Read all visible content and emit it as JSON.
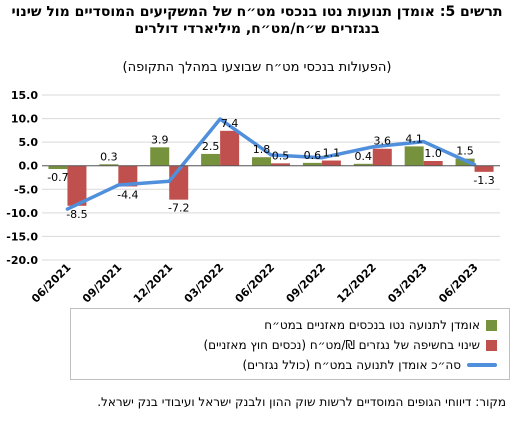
{
  "title": "תרשים 5: אומדן תנועות נטו בנכסי מט״ח של המשקיעים המוסדיים מול שינוי בנגזרים ש״ח/מט״ח, מיליארדי דולרים",
  "subtitle": "(הפעולות בנכסי מט״ח שבוצעו במהלך התקופה)",
  "source": "מקור: דיווחי הגופים המוסדיים לרשות שוק ההון ולבנק ישראל ועיבודי בנק ישראל.",
  "colors": {
    "green": "#76923c",
    "red": "#c0504d",
    "blue": "#4f8fdc",
    "grid": "#d9d9d9"
  },
  "chart_data": {
    "type": "bar",
    "x_tick_labels": [
      "06/2021",
      "09/2021",
      "12/2021",
      "03/2022",
      "06/2022",
      "09/2022",
      "12/2022",
      "03/2023",
      "06/2023"
    ],
    "ylim": [
      -20,
      15
    ],
    "y_ticks": [
      "15.0",
      "10.0",
      "5.0",
      "0.0",
      "-5.0",
      "-10.0",
      "-15.0",
      "-20.0"
    ],
    "y_tick_values": [
      15,
      10,
      5,
      0,
      -5,
      -10,
      -15,
      -20
    ],
    "series": [
      {
        "name": "אומדן לתנועה נטו בנכסים מאזניים במט״ח",
        "type": "bar",
        "color": "#76923c",
        "values": [
          -0.7,
          0.3,
          3.9,
          2.5,
          1.8,
          0.6,
          0.4,
          4.1,
          1.5
        ],
        "labels": [
          "-0.7",
          "0.3",
          "3.9",
          "2.5",
          "1.8",
          "0.6",
          "0.4",
          "4.1",
          "1.5"
        ]
      },
      {
        "name": "שינוי בחשיפה של נגזרים ₪/מט״ח (נכסים חוץ מאזניים)",
        "type": "bar",
        "color": "#c0504d",
        "values": [
          -8.5,
          -4.4,
          -7.2,
          7.4,
          0.5,
          1.1,
          3.6,
          1.0,
          -1.3
        ],
        "labels": [
          "-8.5",
          "-4.4",
          "-7.2",
          "7.4",
          "0.5",
          "1.1",
          "3.6",
          "1.0",
          "-1.3"
        ]
      },
      {
        "name": "סה״כ אומדן לתנועה במט״ח (כולל נגזרים)",
        "type": "line",
        "color": "#4f8fdc",
        "values": [
          -9.2,
          -4.1,
          -3.3,
          9.9,
          2.3,
          1.7,
          4.0,
          5.1,
          0.2
        ]
      }
    ],
    "grid": true,
    "legend": "bottom"
  }
}
